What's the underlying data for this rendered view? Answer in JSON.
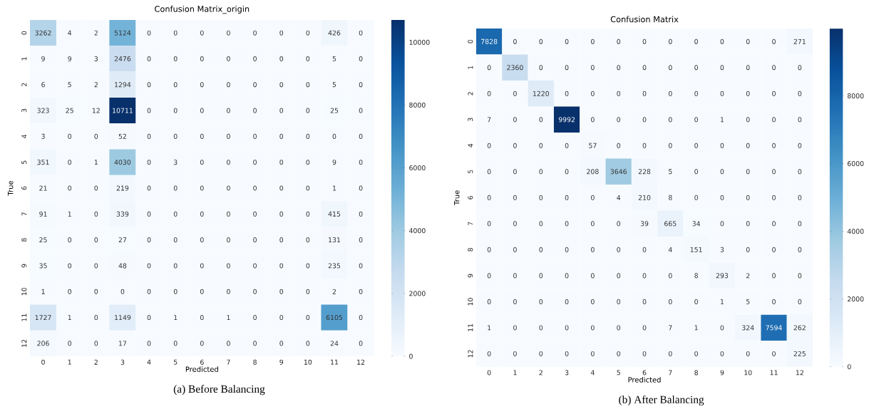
{
  "chart_data": [
    {
      "type": "heatmap",
      "title": "Confusion Matrix_origin",
      "xlabel": "Predicted",
      "ylabel": "True",
      "categories": [
        "0",
        "1",
        "2",
        "3",
        "4",
        "5",
        "6",
        "7",
        "8",
        "9",
        "10",
        "11",
        "12"
      ],
      "y_categories": [
        "0",
        "1",
        "2",
        "3",
        "4",
        "5",
        "6",
        "7",
        "8",
        "9",
        "10",
        "11",
        "12"
      ],
      "cells": [
        [
          3262,
          4,
          2,
          5124,
          0,
          0,
          0,
          0,
          0,
          0,
          0,
          426,
          0
        ],
        [
          9,
          9,
          3,
          2476,
          0,
          0,
          0,
          0,
          0,
          0,
          0,
          5,
          0
        ],
        [
          6,
          5,
          2,
          1294,
          0,
          0,
          0,
          0,
          0,
          0,
          0,
          5,
          0
        ],
        [
          323,
          25,
          12,
          10711,
          0,
          0,
          0,
          0,
          0,
          0,
          0,
          25,
          0
        ],
        [
          3,
          0,
          0,
          52,
          0,
          0,
          0,
          0,
          0,
          0,
          0,
          0,
          0
        ],
        [
          351,
          0,
          1,
          4030,
          0,
          3,
          0,
          0,
          0,
          0,
          0,
          9,
          0
        ],
        [
          21,
          0,
          0,
          219,
          0,
          0,
          0,
          0,
          0,
          0,
          0,
          1,
          0
        ],
        [
          91,
          1,
          0,
          339,
          0,
          0,
          0,
          0,
          0,
          0,
          0,
          415,
          0
        ],
        [
          25,
          0,
          0,
          27,
          0,
          0,
          0,
          0,
          0,
          0,
          0,
          131,
          0
        ],
        [
          35,
          0,
          0,
          48,
          0,
          0,
          0,
          0,
          0,
          0,
          0,
          235,
          0
        ],
        [
          1,
          0,
          0,
          0,
          0,
          0,
          0,
          0,
          0,
          0,
          0,
          2,
          0
        ],
        [
          1727,
          1,
          0,
          1149,
          0,
          1,
          0,
          1,
          0,
          0,
          0,
          6105,
          0
        ],
        [
          206,
          0,
          0,
          17,
          0,
          0,
          0,
          0,
          0,
          0,
          0,
          24,
          0
        ]
      ],
      "clim": [
        0,
        10711
      ],
      "cticks": [
        0,
        2000,
        4000,
        6000,
        8000,
        10000
      ],
      "data_labels": true,
      "annotations": [
        "(a) Before Balancing"
      ]
    },
    {
      "type": "heatmap",
      "title": "Confusion Matrix",
      "xlabel": "Predicted",
      "ylabel": "True",
      "categories": [
        "0",
        "1",
        "2",
        "3",
        "4",
        "5",
        "6",
        "7",
        "8",
        "9",
        "10",
        "11",
        "12"
      ],
      "y_categories": [
        "0",
        "1",
        "2",
        "3",
        "4",
        "5",
        "6",
        "7",
        "8",
        "9",
        "10",
        "11",
        "12"
      ],
      "cells": [
        [
          7828,
          0,
          0,
          0,
          0,
          0,
          0,
          0,
          0,
          0,
          0,
          0,
          271
        ],
        [
          0,
          2360,
          0,
          0,
          0,
          0,
          0,
          0,
          0,
          0,
          0,
          0,
          0
        ],
        [
          0,
          0,
          1220,
          0,
          0,
          0,
          0,
          0,
          0,
          0,
          0,
          0,
          0
        ],
        [
          7,
          0,
          0,
          9992,
          0,
          0,
          0,
          0,
          0,
          1,
          0,
          0,
          0
        ],
        [
          0,
          0,
          0,
          0,
          57,
          0,
          0,
          0,
          0,
          0,
          0,
          0,
          0
        ],
        [
          0,
          0,
          0,
          0,
          208,
          3646,
          228,
          5,
          0,
          0,
          0,
          0,
          0
        ],
        [
          0,
          0,
          0,
          0,
          0,
          4,
          210,
          8,
          0,
          0,
          0,
          0,
          0
        ],
        [
          0,
          0,
          0,
          0,
          0,
          0,
          39,
          665,
          34,
          0,
          0,
          0,
          0
        ],
        [
          0,
          0,
          0,
          0,
          0,
          0,
          0,
          4,
          151,
          3,
          0,
          0,
          0
        ],
        [
          0,
          0,
          0,
          0,
          0,
          0,
          0,
          0,
          8,
          293,
          2,
          0,
          0
        ],
        [
          0,
          0,
          0,
          0,
          0,
          0,
          0,
          0,
          0,
          1,
          5,
          0,
          0
        ],
        [
          1,
          0,
          0,
          0,
          0,
          0,
          0,
          7,
          1,
          0,
          324,
          7594,
          262
        ],
        [
          0,
          0,
          0,
          0,
          0,
          0,
          0,
          0,
          0,
          0,
          0,
          0,
          225
        ]
      ],
      "clim": [
        0,
        9992
      ],
      "cticks": [
        0,
        2000,
        4000,
        6000,
        8000
      ],
      "data_labels": true,
      "annotations": [
        "(b) After Balancing"
      ]
    }
  ]
}
